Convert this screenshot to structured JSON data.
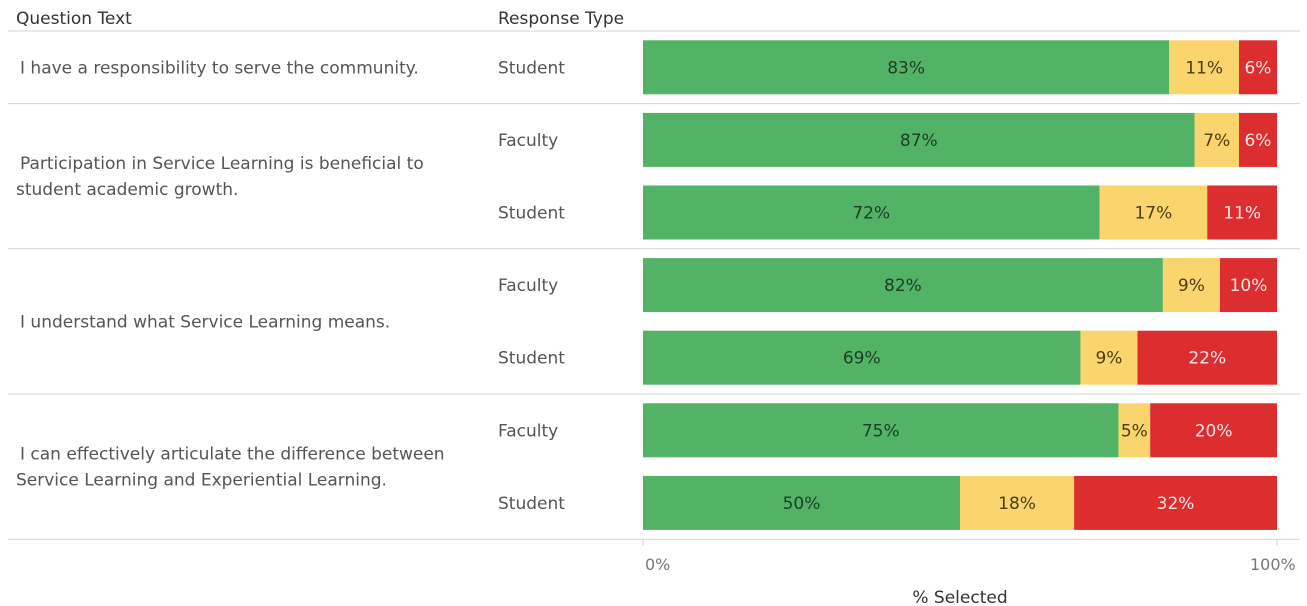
{
  "header": {
    "question_col": "Question Text",
    "response_col": "Response Type"
  },
  "colors": {
    "agree": "#52b266",
    "neutral": "#fad56d",
    "disagree": "#dc2d2f",
    "label_on_green": "#1e3d24",
    "label_on_yellow": "#4a3d10",
    "label_on_red": "#ffe5e5"
  },
  "chart_data": {
    "type": "bar",
    "orientation": "horizontal",
    "stacked": true,
    "xlabel": "% Selected",
    "xlim": [
      0,
      100
    ],
    "x_ticks": [
      "0%",
      "100%"
    ],
    "grid": false,
    "groups": [
      {
        "question": [
          "I have a responsibility to serve the community."
        ],
        "rows": [
          {
            "response": "Student",
            "values": [
              83,
              11,
              6
            ],
            "labels": [
              "83%",
              "11%",
              "6%"
            ]
          }
        ]
      },
      {
        "question": [
          "Participation in Service Learning is beneficial to",
          "student academic growth."
        ],
        "rows": [
          {
            "response": "Faculty",
            "values": [
              87,
              7,
              6
            ],
            "labels": [
              "87%",
              "7%",
              "6%"
            ]
          },
          {
            "response": "Student",
            "values": [
              72,
              17,
              11
            ],
            "labels": [
              "72%",
              "17%",
              "11%"
            ]
          }
        ]
      },
      {
        "question": [
          "I understand what Service Learning means."
        ],
        "rows": [
          {
            "response": "Faculty",
            "values": [
              82,
              9,
              10
            ],
            "labels": [
              "82%",
              "9%",
              "10%"
            ]
          },
          {
            "response": "Student",
            "values": [
              69,
              9,
              22
            ],
            "labels": [
              "69%",
              "9%",
              "22%"
            ]
          }
        ]
      },
      {
        "question": [
          "I can effectively articulate the difference between",
          "Service Learning and Experiential Learning."
        ],
        "rows": [
          {
            "response": "Faculty",
            "values": [
              75,
              5,
              20
            ],
            "labels": [
              "75%",
              "5%",
              "20%"
            ]
          },
          {
            "response": "Student",
            "values": [
              50,
              18,
              32
            ],
            "labels": [
              "50%",
              "18%",
              "32%"
            ]
          }
        ]
      }
    ]
  }
}
